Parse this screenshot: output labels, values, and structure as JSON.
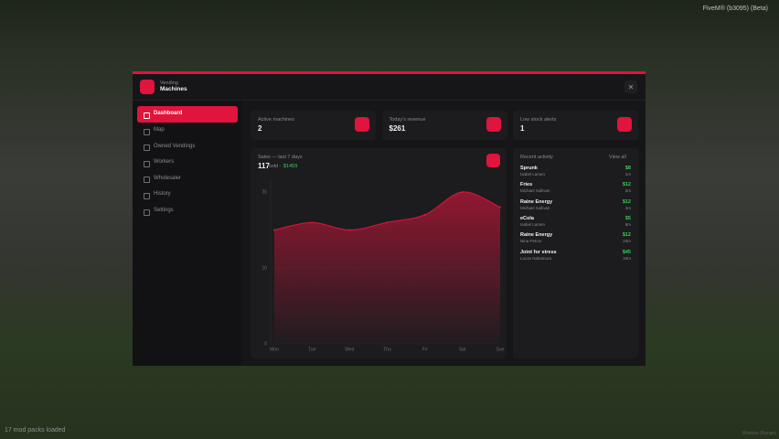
{
  "overlay": {
    "build": "FiveM® (b3095) (Beta)",
    "status": "17 mod packs loaded",
    "corner": "Window (Range)"
  },
  "header": {
    "kicker": "Vending",
    "title": "Machines"
  },
  "sidebar": {
    "active": 0,
    "items": [
      "Dashboard",
      "Map",
      "Owned Vendings",
      "Workers",
      "Wholesaler",
      "History",
      "Settings"
    ]
  },
  "stats": [
    {
      "label": "Active machines",
      "value": "2"
    },
    {
      "label": "Today's revenue",
      "value": "$261"
    },
    {
      "label": "Low stock alerts",
      "value": "1"
    }
  ],
  "chart_data": {
    "type": "area",
    "title": "Sales — last 7 days",
    "total": "117",
    "total_suffix": "sold ·",
    "revenue": "$1459",
    "categories": [
      "Mon",
      "Tue",
      "Wed",
      "Thu",
      "Fri",
      "Sat",
      "Sun"
    ],
    "values": [
      15,
      16,
      15,
      16,
      17,
      20,
      18
    ],
    "ylim": [
      0,
      21
    ],
    "yticks": [
      0,
      10,
      20
    ],
    "color": "#e0143c",
    "grid": true
  },
  "activity": {
    "title": "Recent activity",
    "link": "View all",
    "items": [
      {
        "name": "Sprunk",
        "person": "Isabel Larsen",
        "amount": "$8",
        "time": "1m"
      },
      {
        "name": "Fries",
        "person": "Michael Sullivan",
        "amount": "$12",
        "time": "2m"
      },
      {
        "name": "Raine Energy",
        "person": "Michael Sullivan",
        "amount": "$12",
        "time": "4m"
      },
      {
        "name": "eCola",
        "person": "Isabel Larsen",
        "amount": "$5",
        "time": "8m"
      },
      {
        "name": "Raine Energy",
        "person": "Nina Petrov",
        "amount": "$12",
        "time": "24m"
      },
      {
        "name": "Joint for stress",
        "person": "Lucas Nakamura",
        "amount": "$45",
        "time": "34m"
      }
    ]
  }
}
